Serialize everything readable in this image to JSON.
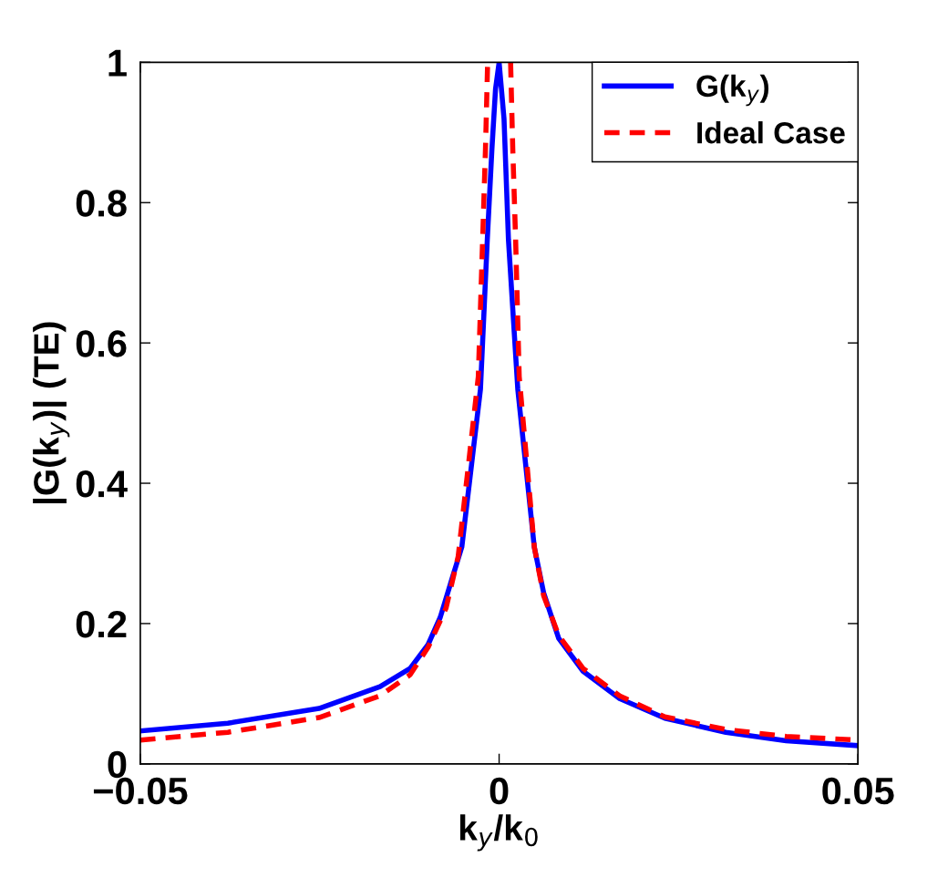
{
  "chart_data": {
    "type": "line",
    "xlabel": "k$_{y}$/k$_{0}$",
    "ylabel": "|G(k$_{y}$)| (TE)",
    "xlim": [
      -0.05,
      0.05
    ],
    "xticks": [
      {
        "value": -0.05,
        "label": "−0.05"
      },
      0,
      0.05
    ],
    "ylim": [
      0,
      1
    ],
    "yticks": [
      0,
      0.2,
      0.4,
      0.6,
      0.8,
      1
    ],
    "grid": false,
    "legend": "top right",
    "series": [
      {
        "name": "G(k$_{y}$)",
        "color": "#0000ff",
        "line_style": "solid",
        "x": [
          -0.05,
          -0.0378,
          -0.0251,
          -0.0166,
          -0.0124,
          -0.0099,
          -0.0082,
          -0.0065,
          -0.0052,
          -0.0026,
          -0.00165,
          -0.001,
          -0.0005,
          0,
          0.00068,
          0.0013,
          0.0026,
          0.0049,
          0.0062,
          0.0083,
          0.0117,
          0.0168,
          0.0231,
          0.0316,
          0.04,
          0.05
        ],
        "values": [
          0.047,
          0.058,
          0.079,
          0.11,
          0.136,
          0.17,
          0.209,
          0.266,
          0.309,
          0.534,
          0.747,
          0.877,
          0.962,
          1,
          0.92,
          0.747,
          0.534,
          0.309,
          0.244,
          0.179,
          0.132,
          0.093,
          0.065,
          0.045,
          0.033,
          0.026
        ]
      },
      {
        "name": "Ideal Case",
        "color": "#ff0000",
        "line_style": "dashed",
        "x": [
          -0.05,
          -0.0378,
          -0.0251,
          -0.0166,
          -0.0124,
          -0.0099,
          -0.0074,
          -0.0057,
          -0.0029,
          -0.0023,
          -0.0019,
          -0.0016,
          0,
          0.0016,
          0.0019,
          0.0023,
          0.0028,
          0.0049,
          0.0062,
          0.0083,
          0.0117,
          0.0168,
          0.0231,
          0.0316,
          0.04,
          0.05
        ],
        "values": [
          0.034,
          0.045,
          0.066,
          0.097,
          0.127,
          0.166,
          0.222,
          0.296,
          0.552,
          0.747,
          0.877,
          1,
          null,
          1,
          0.877,
          0.747,
          0.552,
          0.309,
          0.24,
          0.183,
          0.136,
          0.097,
          0.067,
          0.049,
          0.039,
          0.034
        ]
      }
    ]
  }
}
